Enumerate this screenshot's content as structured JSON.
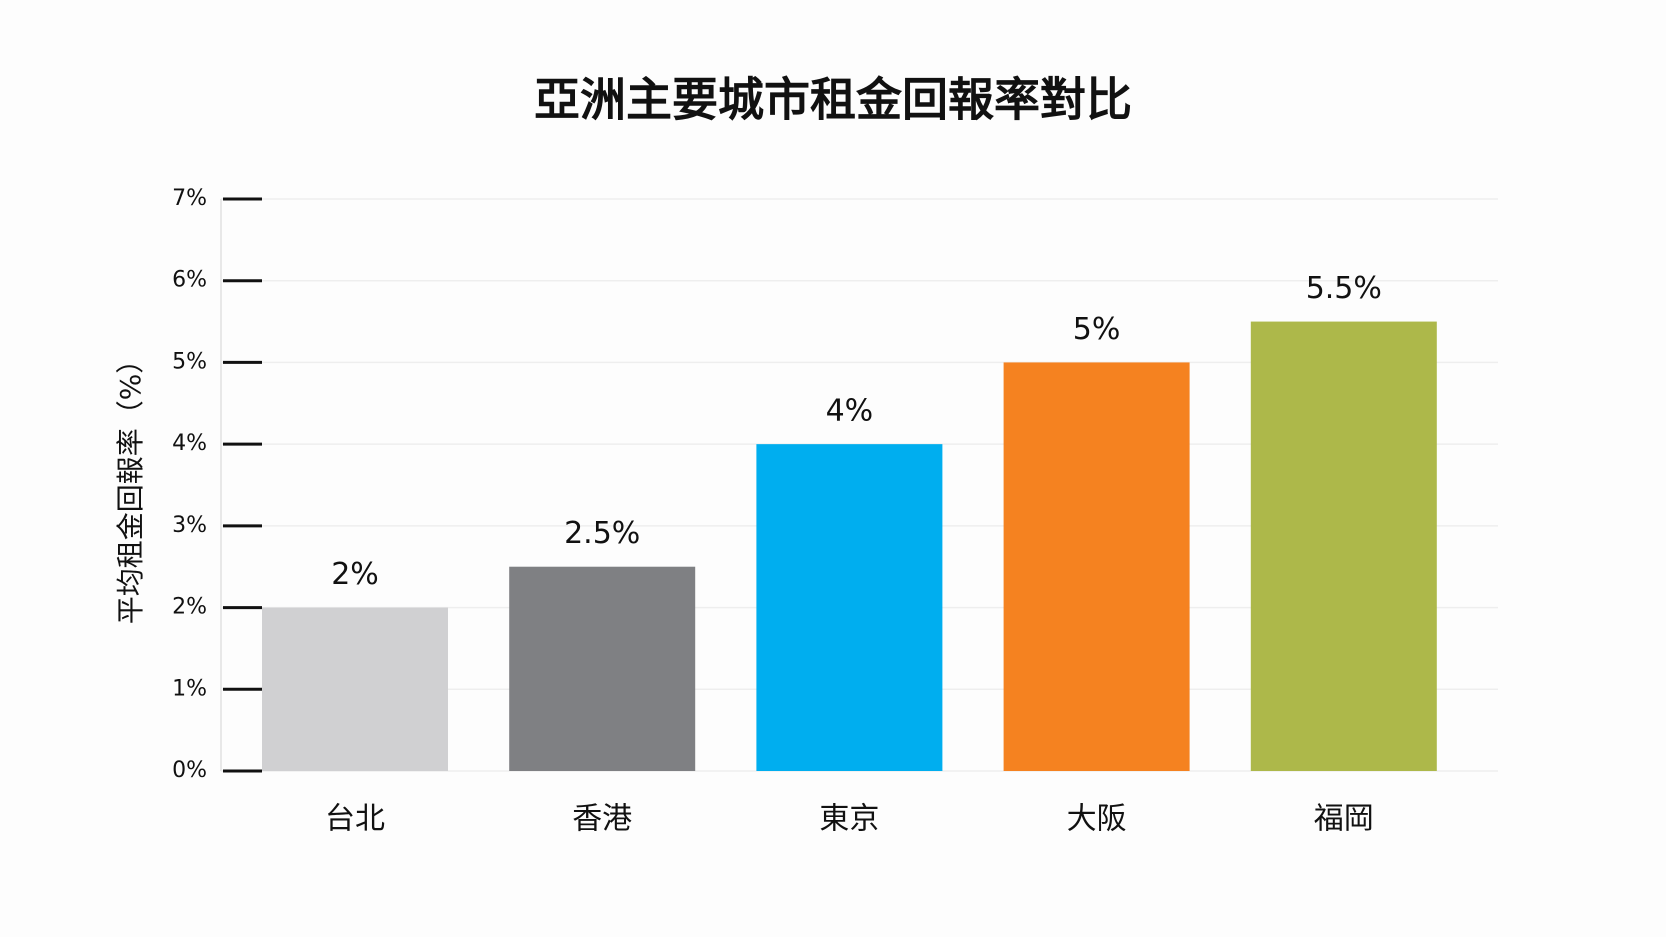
{
  "chart_data": {
    "type": "bar",
    "title": "亞洲主要城市租金回報率對比",
    "y_label": "平均租金回報率（%）",
    "categories": [
      "台北",
      "香港",
      "東京",
      "大阪",
      "福岡"
    ],
    "values": [
      2,
      2.5,
      4,
      5,
      5.5
    ],
    "value_labels": [
      "2%",
      "2.5%",
      "4%",
      "5%",
      "5.5%"
    ],
    "colors": [
      "#d0d0d2",
      "#7f8083",
      "#00aeef",
      "#f58220",
      "#adb84a"
    ],
    "ylim": [
      0,
      7
    ],
    "yticks": [
      {
        "value": 0,
        "label": "0%"
      },
      {
        "value": 1,
        "label": "1%"
      },
      {
        "value": 2,
        "label": "2%"
      },
      {
        "value": 3,
        "label": "3%"
      },
      {
        "value": 4,
        "label": "4%"
      },
      {
        "value": 5,
        "label": "5%"
      },
      {
        "value": 6,
        "label": "6%"
      },
      {
        "value": 7,
        "label": "7%"
      }
    ],
    "grid": true
  }
}
